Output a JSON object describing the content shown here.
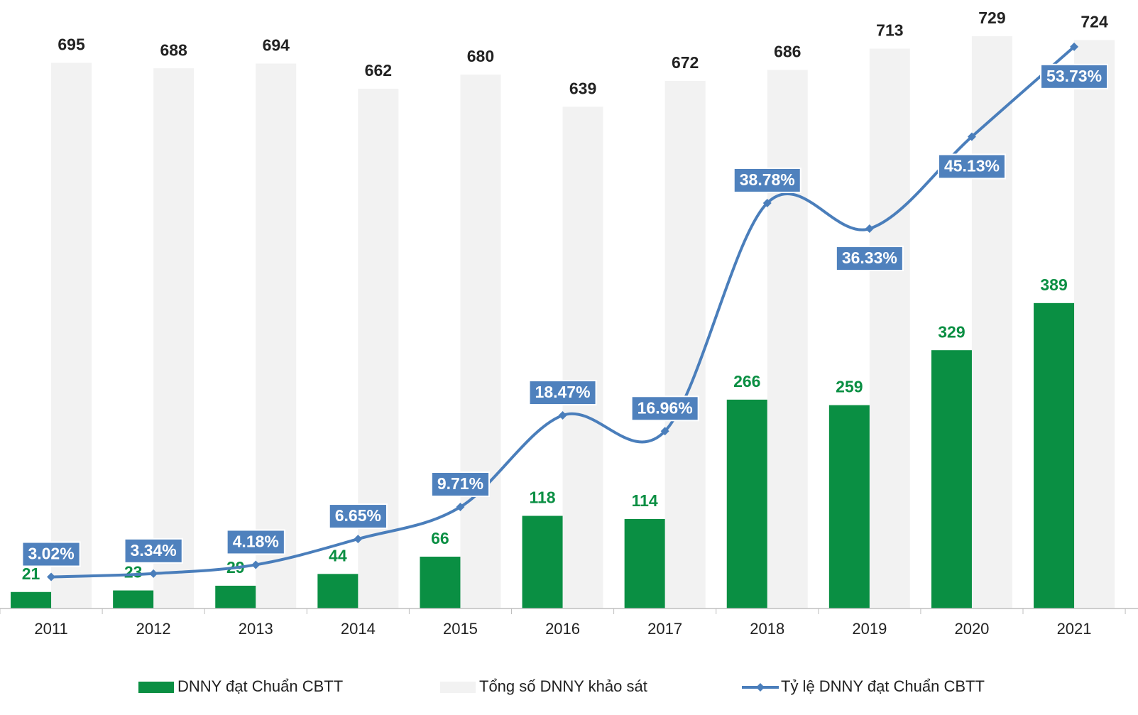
{
  "chart_data": {
    "type": "combo",
    "categories": [
      "2011",
      "2012",
      "2013",
      "2014",
      "2015",
      "2016",
      "2017",
      "2018",
      "2019",
      "2020",
      "2021"
    ],
    "series": [
      {
        "name": "DNNY đạt Chuẩn CBTT",
        "type": "bar",
        "color": "#0a8f43",
        "values": [
          21,
          23,
          29,
          44,
          66,
          118,
          114,
          266,
          259,
          329,
          389
        ]
      },
      {
        "name": "Tổng số DNNY khảo sát",
        "type": "bar",
        "color": "#f2f2f2",
        "values": [
          695,
          688,
          694,
          662,
          680,
          639,
          672,
          686,
          713,
          729,
          724
        ]
      },
      {
        "name": "Tỷ lệ DNNY đạt Chuẩn CBTT",
        "type": "line",
        "color": "#4a7ebb",
        "axis": "y2",
        "values": [
          3.02,
          3.34,
          4.18,
          6.65,
          9.71,
          18.47,
          16.96,
          38.78,
          36.33,
          45.13,
          53.73
        ],
        "value_labels": [
          "3.02%",
          "3.34%",
          "4.18%",
          "6.65%",
          "9.71%",
          "18.47%",
          "16.96%",
          "38.78%",
          "36.33%",
          "45.13%",
          "53.73%"
        ]
      }
    ],
    "ylim": [
      0,
      775
    ],
    "y2lim": [
      0,
      58.2
    ],
    "legend": "bottom"
  }
}
